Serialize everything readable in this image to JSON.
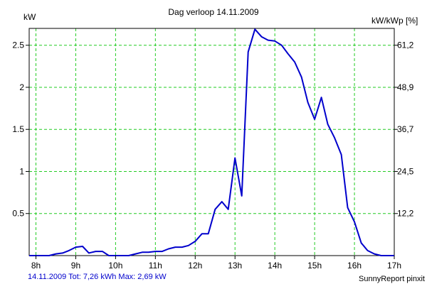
{
  "chart_data": {
    "type": "line",
    "title": "Dag  verloop 14.11.2009",
    "ylabel_left": "kW",
    "ylabel_right": "kW/kWp [%]",
    "x_ticks": [
      {
        "value": 8,
        "label": "8h"
      },
      {
        "value": 9,
        "label": "9h"
      },
      {
        "value": 10,
        "label": "10h"
      },
      {
        "value": 11,
        "label": "11h"
      },
      {
        "value": 12,
        "label": "12h"
      },
      {
        "value": 13,
        "label": "13h"
      },
      {
        "value": 14,
        "label": "14h"
      },
      {
        "value": 15,
        "label": "15h"
      },
      {
        "value": 16,
        "label": "16h"
      },
      {
        "value": 17,
        "label": "17h"
      }
    ],
    "y_ticks_left": [
      {
        "value": 0.5,
        "label": "0.5"
      },
      {
        "value": 1,
        "label": "1"
      },
      {
        "value": 1.5,
        "label": "1.5"
      },
      {
        "value": 2,
        "label": "2"
      },
      {
        "value": 2.5,
        "label": "2.5"
      }
    ],
    "y_ticks_right": [
      {
        "value": 0.5,
        "label": "12,2"
      },
      {
        "value": 1,
        "label": "24,5"
      },
      {
        "value": 1.5,
        "label": "36,7"
      },
      {
        "value": 2,
        "label": "48,9"
      },
      {
        "value": 2.5,
        "label": "61,2"
      }
    ],
    "xlim": [
      7.83,
      17.0
    ],
    "ylim": [
      0,
      2.7
    ],
    "grid": true,
    "line_color": "#0000cc",
    "grid_color": "#22cc22",
    "series": [
      {
        "x": [
          7.83,
          8.0,
          8.17,
          8.33,
          8.5,
          8.67,
          8.83,
          9.0,
          9.17,
          9.33,
          9.5,
          9.67,
          9.83,
          10.0,
          10.17,
          10.33,
          10.5,
          10.67,
          10.83,
          11.0,
          11.17,
          11.33,
          11.5,
          11.67,
          11.83,
          12.0,
          12.17,
          12.33,
          12.5,
          12.67,
          12.83,
          13.0,
          13.17,
          13.33,
          13.5,
          13.67,
          13.83,
          14.0,
          14.17,
          14.33,
          14.5,
          14.67,
          14.83,
          15.0,
          15.17,
          15.33,
          15.5,
          15.67,
          15.83,
          16.0,
          16.17,
          16.33,
          16.5,
          16.67,
          16.83,
          17.0
        ],
        "y": [
          0.0,
          0.0,
          0.0,
          0.0,
          0.02,
          0.03,
          0.06,
          0.1,
          0.11,
          0.03,
          0.05,
          0.05,
          0.0,
          0.0,
          0.0,
          0.0,
          0.02,
          0.04,
          0.04,
          0.05,
          0.05,
          0.08,
          0.1,
          0.1,
          0.12,
          0.17,
          0.26,
          0.26,
          0.55,
          0.64,
          0.55,
          1.16,
          0.71,
          2.42,
          2.69,
          2.6,
          2.56,
          2.55,
          2.5,
          2.4,
          2.3,
          2.12,
          1.82,
          1.62,
          1.88,
          1.56,
          1.4,
          1.2,
          0.57,
          0.4,
          0.15,
          0.06,
          0.02,
          0.0,
          0.0,
          0.0
        ]
      }
    ]
  },
  "footer": {
    "left": "14.11.2009 Tot: 7,26 kWh Max: 2,69 kW",
    "right": "SunnyReport pinxit"
  }
}
